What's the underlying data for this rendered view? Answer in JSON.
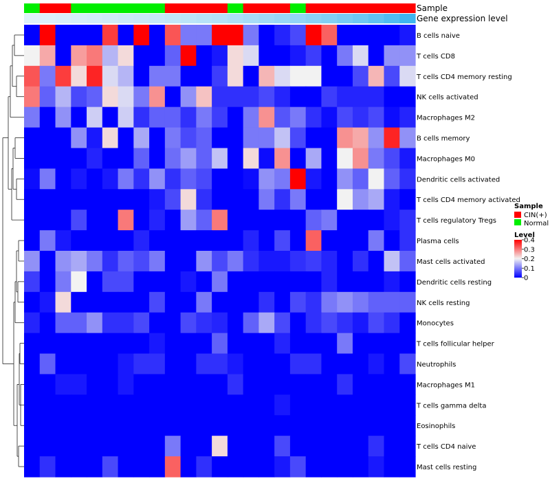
{
  "chart_data": {
    "type": "heatmap",
    "annotation_tracks": [
      "Sample",
      "Gene expression level"
    ],
    "columns": {
      "sample": [
        "Normal",
        "CIN(+)",
        "CIN(+)",
        "Normal",
        "Normal",
        "Normal",
        "Normal",
        "Normal",
        "Normal",
        "CIN(+)",
        "CIN(+)",
        "CIN(+)",
        "CIN(+)",
        "Normal",
        "CIN(+)",
        "CIN(+)",
        "CIN(+)",
        "Normal",
        "CIN(+)",
        "CIN(+)",
        "CIN(+)",
        "CIN(+)",
        "CIN(+)",
        "CIN(+)",
        "CIN(+)"
      ],
      "expression_level": [
        0.05,
        0.06,
        0.08,
        0.1,
        0.12,
        0.14,
        0.16,
        0.18,
        0.2,
        0.22,
        0.25,
        0.28,
        0.3,
        0.34,
        0.38,
        0.42,
        0.46,
        0.5,
        0.55,
        0.6,
        0.66,
        0.72,
        0.8,
        0.9,
        1.0
      ]
    },
    "rows": [
      "B cells naive",
      "T cells CD8",
      "T cells CD4 memory resting",
      "NK cells activated",
      "Macrophages M2",
      "B cells memory",
      "Macrophages M0",
      "Dendritic cells activated",
      "T cells CD4 memory activated",
      "T cells regulatory  Tregs",
      "Plasma cells",
      "Mast cells activated",
      "Dendritic cells resting",
      "NK cells resting",
      "Monocytes",
      "T cells follicular helper",
      "Neutrophils",
      "Macrophages M1",
      "T cells gamma delta",
      "Eosinophils",
      "T cells CD4 naive",
      "Mast cells resting"
    ],
    "values": [
      [
        0.0,
        0.4,
        0.0,
        0.0,
        0.0,
        0.35,
        0.0,
        0.4,
        0.0,
        0.33,
        0.1,
        0.1,
        0.4,
        0.4,
        0.1,
        0.0,
        0.03,
        0.06,
        0.4,
        0.32,
        0.0,
        0.0,
        0.0,
        0.0,
        0.02
      ],
      [
        0.2,
        0.26,
        0.0,
        0.27,
        0.3,
        0.15,
        0.22,
        0.0,
        0.0,
        0.08,
        0.4,
        0.0,
        0.02,
        0.22,
        0.18,
        0.0,
        0.0,
        0.02,
        0.05,
        0.0,
        0.1,
        0.18,
        0.0,
        0.12,
        0.12
      ],
      [
        0.33,
        0.1,
        0.35,
        0.22,
        0.37,
        0.18,
        0.15,
        0.0,
        0.1,
        0.1,
        0.0,
        0.0,
        0.05,
        0.22,
        0.0,
        0.25,
        0.18,
        0.2,
        0.2,
        0.0,
        0.0,
        0.06,
        0.25,
        0.06,
        0.18
      ],
      [
        0.3,
        0.08,
        0.15,
        0.06,
        0.08,
        0.22,
        0.18,
        0.1,
        0.28,
        0.0,
        0.12,
        0.24,
        0.04,
        0.04,
        0.04,
        0.06,
        0.03,
        0.0,
        0.0,
        0.05,
        0.03,
        0.03,
        0.03,
        0.0,
        0.0
      ],
      [
        0.1,
        0.0,
        0.12,
        0.0,
        0.17,
        0.0,
        0.17,
        0.04,
        0.08,
        0.08,
        0.04,
        0.1,
        0.05,
        0.0,
        0.1,
        0.28,
        0.07,
        0.1,
        0.04,
        0.01,
        0.06,
        0.04,
        0.06,
        0.01,
        0.03
      ],
      [
        0.0,
        0.0,
        0.0,
        0.12,
        0.02,
        0.22,
        0.0,
        0.14,
        0.0,
        0.1,
        0.06,
        0.08,
        0.0,
        0.0,
        0.1,
        0.1,
        0.16,
        0.06,
        0.0,
        0.0,
        0.28,
        0.26,
        0.12,
        0.37,
        0.12
      ],
      [
        0.0,
        0.0,
        0.0,
        0.0,
        0.03,
        0.0,
        0.0,
        0.08,
        0.0,
        0.09,
        0.13,
        0.08,
        0.16,
        0.0,
        0.22,
        0.01,
        0.28,
        0.0,
        0.14,
        0.0,
        0.2,
        0.28,
        0.1,
        0.06,
        0.02
      ],
      [
        0.01,
        0.1,
        0.0,
        0.02,
        0.0,
        0.02,
        0.1,
        0.04,
        0.12,
        0.04,
        0.08,
        0.06,
        0.0,
        0.0,
        0.01,
        0.12,
        0.1,
        0.4,
        0.02,
        0.0,
        0.12,
        0.08,
        0.2,
        0.08,
        0.04
      ],
      [
        0.0,
        0.0,
        0.0,
        0.0,
        0.0,
        0.0,
        0.0,
        0.0,
        0.02,
        0.06,
        0.22,
        0.04,
        0.0,
        0.0,
        0.0,
        0.1,
        0.04,
        0.1,
        0.0,
        0.0,
        0.2,
        0.12,
        0.14,
        0.02,
        0.0
      ],
      [
        0.0,
        0.0,
        0.0,
        0.06,
        0.0,
        0.0,
        0.3,
        0.0,
        0.03,
        0.0,
        0.13,
        0.08,
        0.3,
        0.0,
        0.0,
        0.0,
        0.0,
        0.0,
        0.08,
        0.1,
        0.0,
        0.0,
        0.0,
        0.02,
        0.04
      ],
      [
        0.0,
        0.1,
        0.02,
        0.0,
        0.0,
        0.0,
        0.0,
        0.03,
        0.0,
        0.0,
        0.0,
        0.0,
        0.0,
        0.0,
        0.03,
        0.0,
        0.06,
        0.0,
        0.32,
        0.0,
        0.0,
        0.0,
        0.1,
        0.0,
        0.04
      ],
      [
        0.12,
        0.0,
        0.12,
        0.14,
        0.1,
        0.04,
        0.08,
        0.06,
        0.1,
        0.0,
        0.0,
        0.12,
        0.06,
        0.1,
        0.04,
        0.02,
        0.02,
        0.04,
        0.05,
        0.03,
        0.0,
        0.04,
        0.0,
        0.16,
        0.08
      ],
      [
        0.05,
        0.0,
        0.1,
        0.2,
        0.0,
        0.06,
        0.06,
        0.0,
        0.0,
        0.0,
        0.02,
        0.0,
        0.1,
        0.0,
        0.0,
        0.0,
        0.0,
        0.0,
        0.0,
        0.03,
        0.0,
        0.0,
        0.0,
        0.02,
        0.0
      ],
      [
        0.0,
        0.02,
        0.22,
        0.0,
        0.0,
        0.0,
        0.0,
        0.0,
        0.06,
        0.0,
        0.0,
        0.1,
        0.0,
        0.0,
        0.0,
        0.04,
        0.0,
        0.06,
        0.04,
        0.1,
        0.12,
        0.1,
        0.08,
        0.08,
        0.08
      ],
      [
        0.03,
        0.0,
        0.08,
        0.08,
        0.12,
        0.04,
        0.04,
        0.06,
        0.0,
        0.0,
        0.06,
        0.04,
        0.03,
        0.0,
        0.08,
        0.14,
        0.06,
        0.0,
        0.04,
        0.06,
        0.04,
        0.02,
        0.06,
        0.04,
        0.0
      ],
      [
        0.0,
        0.0,
        0.0,
        0.0,
        0.0,
        0.0,
        0.0,
        0.0,
        0.02,
        0.0,
        0.0,
        0.0,
        0.08,
        0.0,
        0.0,
        0.0,
        0.03,
        0.0,
        0.0,
        0.0,
        0.1,
        0.0,
        0.0,
        0.0,
        0.0
      ],
      [
        0.0,
        0.08,
        0.0,
        0.0,
        0.0,
        0.0,
        0.02,
        0.04,
        0.04,
        0.0,
        0.0,
        0.04,
        0.04,
        0.02,
        0.0,
        0.0,
        0.0,
        0.04,
        0.04,
        0.0,
        0.0,
        0.0,
        0.02,
        0.0,
        0.06
      ],
      [
        0.0,
        0.0,
        0.02,
        0.02,
        0.0,
        0.0,
        0.02,
        0.0,
        0.0,
        0.0,
        0.0,
        0.0,
        0.0,
        0.04,
        0.0,
        0.0,
        0.0,
        0.0,
        0.0,
        0.0,
        0.04,
        0.0,
        0.0,
        0.0,
        0.0
      ],
      [
        0.0,
        0.0,
        0.0,
        0.0,
        0.0,
        0.0,
        0.0,
        0.0,
        0.0,
        0.0,
        0.0,
        0.0,
        0.0,
        0.0,
        0.0,
        0.0,
        0.02,
        0.0,
        0.0,
        0.0,
        0.0,
        0.0,
        0.0,
        0.0,
        0.0
      ],
      [
        0.0,
        0.0,
        0.0,
        0.0,
        0.0,
        0.0,
        0.0,
        0.0,
        0.0,
        0.0,
        0.0,
        0.0,
        0.0,
        0.0,
        0.0,
        0.0,
        0.0,
        0.0,
        0.0,
        0.0,
        0.0,
        0.0,
        0.0,
        0.0,
        0.0
      ],
      [
        0.0,
        0.0,
        0.0,
        0.0,
        0.0,
        0.0,
        0.0,
        0.0,
        0.0,
        0.1,
        0.0,
        0.0,
        0.22,
        0.0,
        0.0,
        0.0,
        0.06,
        0.0,
        0.0,
        0.0,
        0.0,
        0.0,
        0.04,
        0.0,
        0.0
      ],
      [
        0.0,
        0.04,
        0.0,
        0.0,
        0.0,
        0.06,
        0.0,
        0.0,
        0.0,
        0.32,
        0.0,
        0.04,
        0.0,
        0.0,
        0.0,
        0.0,
        0.02,
        0.06,
        0.0,
        0.0,
        0.0,
        0.0,
        0.02,
        0.0,
        0.0
      ]
    ],
    "scale": {
      "min": 0,
      "max": 0.4
    },
    "legend": {
      "sample_title": "Sample",
      "sample_entries": [
        {
          "label": "CIN(+)",
          "color": "#ff0000"
        },
        {
          "label": "Normal",
          "color": "#00ee00"
        }
      ],
      "level_title": "Level",
      "level_ticks": [
        {
          "value": 0.4,
          "label": "0.4"
        },
        {
          "value": 0.3,
          "label": "0.3"
        },
        {
          "value": 0.2,
          "label": "0.2"
        },
        {
          "value": 0.1,
          "label": "0.1"
        },
        {
          "value": 0,
          "label": "0"
        }
      ]
    },
    "colors": {
      "low": "#0000ff",
      "mid": "#f2f2f2",
      "high": "#ff0000",
      "expr_low": "#e6f4fb",
      "expr_high": "#3fb6f0",
      "normal": "#00ee00",
      "cin": "#ff0000"
    }
  }
}
